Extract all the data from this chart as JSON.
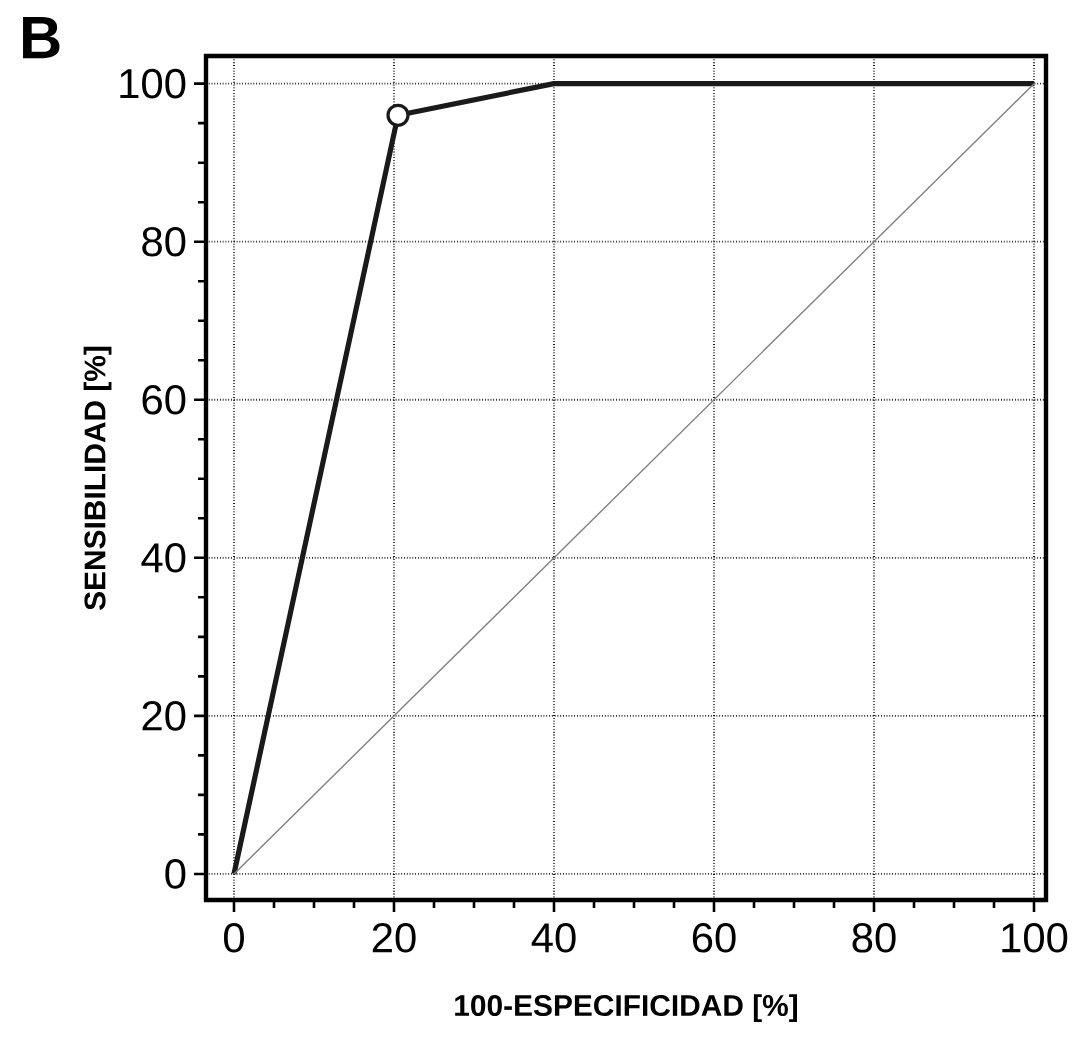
{
  "chart_data": {
    "type": "line",
    "xlabel": "100-ESPECIFICIDAD [%]",
    "ylabel": "SENSIBILIDAD [%]",
    "annotations": [
      "B"
    ],
    "series": [
      {
        "x": [
          0,
          20.5,
          40,
          100
        ],
        "values": [
          0,
          96,
          100,
          100
        ],
        "color": "#1a1a1a",
        "marker": "none"
      },
      {
        "type": "scatter",
        "x": [
          20.5
        ],
        "values": [
          96
        ],
        "color": "#1a1a1a",
        "marker": "circle"
      },
      {
        "x": [
          0,
          100
        ],
        "values": [
          0,
          100
        ],
        "color": "#808080",
        "marker": "none"
      }
    ],
    "xlim": [
      -3.5,
      101.5
    ],
    "ylim": [
      -3.3,
      103.5
    ],
    "xticks": [
      0,
      20,
      40,
      60,
      80,
      100
    ],
    "yticks": [
      0,
      20,
      40,
      60,
      80,
      100
    ],
    "grid": true,
    "line_style": "solid"
  }
}
